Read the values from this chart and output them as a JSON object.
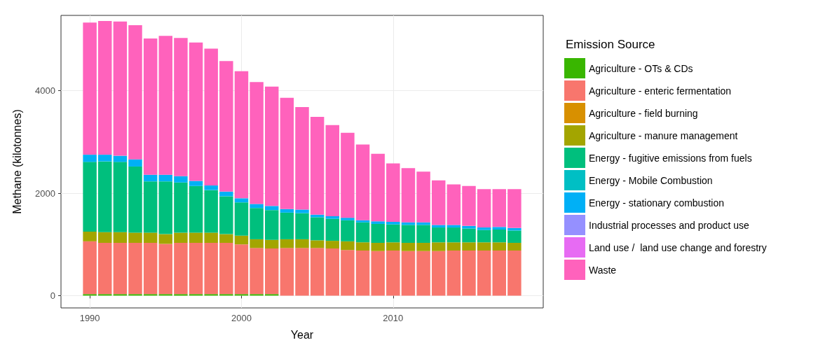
{
  "chart_data": {
    "type": "bar",
    "stacked": true,
    "xlabel": "Year",
    "ylabel": "Methane (kilotonnes)",
    "legend_title": "Emission Source",
    "legend": "right",
    "grid": true,
    "x": [
      1990,
      1991,
      1992,
      1993,
      1994,
      1995,
      1996,
      1997,
      1998,
      1999,
      2000,
      2001,
      2002,
      2003,
      2004,
      2005,
      2006,
      2007,
      2008,
      2009,
      2010,
      2011,
      2012,
      2013,
      2014,
      2015,
      2016,
      2017,
      2018
    ],
    "xlim": [
      1988.1,
      2019.9
    ],
    "xticks": [
      1990,
      2000,
      2010
    ],
    "ylim": [
      -240,
      5470
    ],
    "yticks": [
      0,
      2000,
      4000
    ],
    "series": [
      {
        "name": "Agriculture - OTs & CDs",
        "color": "#39b600",
        "values": [
          30,
          30,
          30,
          30,
          30,
          30,
          30,
          30,
          30,
          30,
          30,
          30,
          30,
          null,
          null,
          null,
          null,
          null,
          null,
          null,
          null,
          null,
          null,
          null,
          null,
          null,
          null,
          null,
          null
        ]
      },
      {
        "name": "Agriculture - enteric fermentation",
        "color": "#f8766d",
        "values": [
          1030,
          1000,
          1000,
          1000,
          1000,
          980,
          1000,
          1000,
          1000,
          1000,
          970,
          900,
          890,
          930,
          930,
          930,
          920,
          890,
          880,
          870,
          880,
          870,
          870,
          870,
          880,
          880,
          880,
          880,
          880
        ]
      },
      {
        "name": "Agriculture - field burning",
        "color": "#d89000",
        "values": [
          null,
          null,
          null,
          null,
          null,
          null,
          null,
          null,
          null,
          null,
          null,
          null,
          null,
          null,
          null,
          null,
          null,
          null,
          null,
          null,
          null,
          null,
          null,
          null,
          null,
          null,
          null,
          null,
          null
        ]
      },
      {
        "name": "Agriculture - manure management",
        "color": "#a3a500",
        "values": [
          190,
          210,
          210,
          200,
          200,
          190,
          200,
          200,
          200,
          170,
          170,
          170,
          170,
          170,
          170,
          150,
          150,
          170,
          160,
          160,
          160,
          160,
          160,
          170,
          160,
          160,
          160,
          160,
          150
        ]
      },
      {
        "name": "Energy - fugitive emissions from fuels",
        "color": "#00bf7d",
        "values": [
          1360,
          1380,
          1370,
          1290,
          1000,
          1030,
          980,
          910,
          830,
          740,
          650,
          610,
          580,
          520,
          510,
          450,
          430,
          410,
          390,
          370,
          350,
          350,
          350,
          290,
          290,
          270,
          240,
          250,
          240
        ]
      },
      {
        "name": "Energy - Mobile Combustion",
        "color": "#00bfc4",
        "values": [
          null,
          null,
          null,
          null,
          null,
          null,
          null,
          null,
          null,
          null,
          null,
          null,
          null,
          null,
          null,
          null,
          null,
          null,
          null,
          null,
          null,
          null,
          null,
          null,
          null,
          null,
          null,
          null,
          null
        ]
      },
      {
        "name": "Energy - stationary combustion",
        "color": "#00b0f6",
        "values": [
          140,
          130,
          120,
          140,
          130,
          130,
          120,
          100,
          90,
          90,
          80,
          80,
          80,
          70,
          70,
          50,
          50,
          50,
          40,
          50,
          50,
          50,
          50,
          50,
          50,
          50,
          50,
          50,
          50
        ]
      },
      {
        "name": "Industrial processes and product use",
        "color": "#9590ff",
        "values": [
          null,
          null,
          null,
          null,
          null,
          null,
          null,
          null,
          null,
          null,
          null,
          null,
          null,
          null,
          null,
          null,
          null,
          null,
          null,
          null,
          null,
          null,
          null,
          null,
          null,
          null,
          null,
          null,
          null
        ]
      },
      {
        "name": "Land use /  land use change and forestry",
        "color": "#e76bf3",
        "values": [
          null,
          null,
          null,
          null,
          null,
          null,
          null,
          null,
          null,
          null,
          null,
          null,
          null,
          null,
          null,
          null,
          null,
          null,
          null,
          null,
          null,
          null,
          null,
          null,
          null,
          null,
          null,
          null,
          null
        ]
      },
      {
        "name": "Waste",
        "color": "#ff62bc",
        "values": [
          2580,
          2610,
          2620,
          2620,
          2660,
          2710,
          2700,
          2700,
          2670,
          2550,
          2480,
          2380,
          2330,
          2170,
          2000,
          1910,
          1780,
          1660,
          1480,
          1320,
          1140,
          1060,
          990,
          870,
          790,
          780,
          750,
          740,
          760
        ]
      }
    ]
  }
}
